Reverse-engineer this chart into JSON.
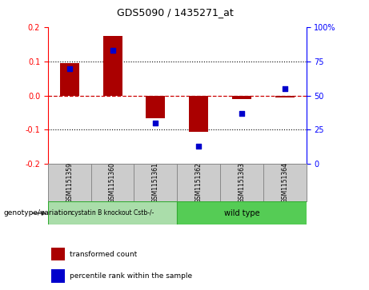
{
  "title": "GDS5090 / 1435271_at",
  "samples": [
    "GSM1151359",
    "GSM1151360",
    "GSM1151361",
    "GSM1151362",
    "GSM1151363",
    "GSM1151364"
  ],
  "bar_values": [
    0.095,
    0.175,
    -0.065,
    -0.105,
    -0.01,
    -0.005
  ],
  "dot_values_pct": [
    70,
    83,
    30,
    13,
    37,
    55
  ],
  "ylim_left": [
    -0.2,
    0.2
  ],
  "ylim_right": [
    0,
    100
  ],
  "yticks_left": [
    -0.2,
    -0.1,
    0.0,
    0.1,
    0.2
  ],
  "yticks_right": [
    0,
    25,
    50,
    75,
    100
  ],
  "ytick_labels_right": [
    "0",
    "25",
    "50",
    "75",
    "100%"
  ],
  "bar_color": "#aa0000",
  "dot_color": "#0000cc",
  "zero_line_color": "#cc0000",
  "bg_plot": "#ffffff",
  "bg_sample": "#cccccc",
  "group1_label": "cystatin B knockout Cstb-/-",
  "group2_label": "wild type",
  "group1_color": "#aaddaa",
  "group2_color": "#55cc55",
  "group1_indices": [
    0,
    1,
    2
  ],
  "group2_indices": [
    3,
    4,
    5
  ],
  "legend_bar_label": "transformed count",
  "legend_dot_label": "percentile rank within the sample",
  "genotype_label": "genotype/variation",
  "bar_width": 0.45
}
